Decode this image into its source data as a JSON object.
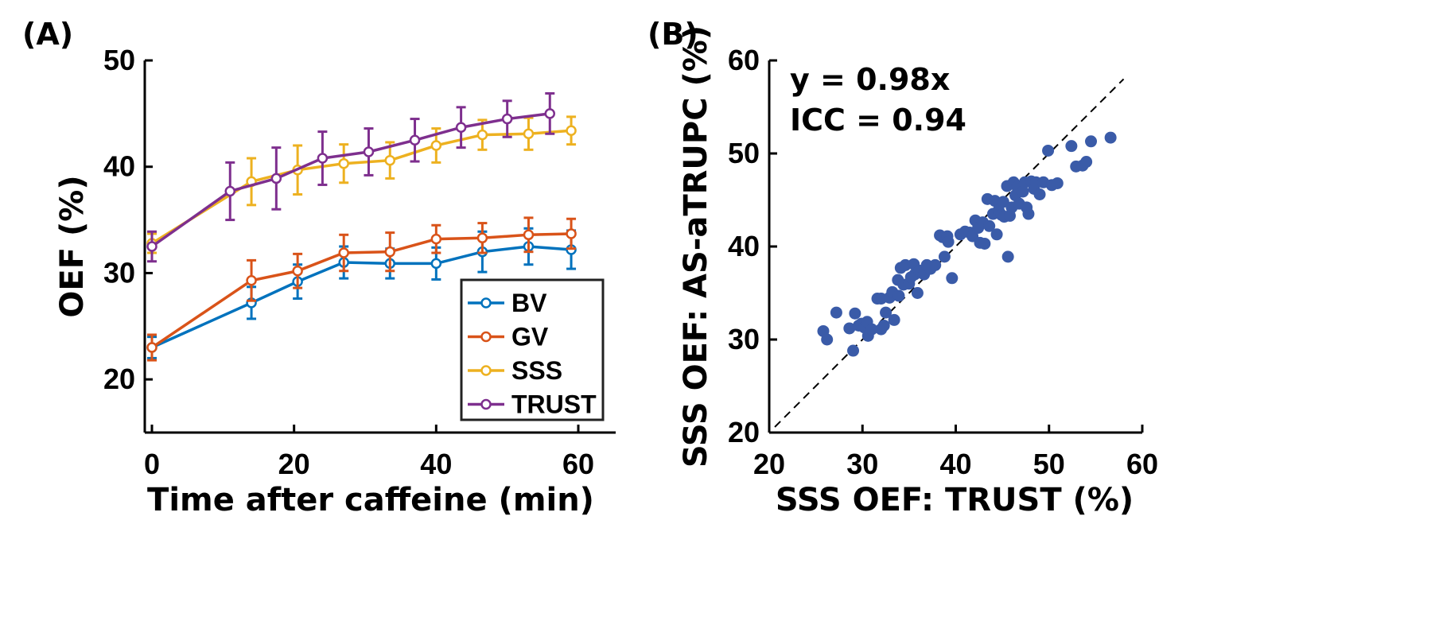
{
  "chart_data": [
    {
      "panel_label": "(A)",
      "type": "line",
      "xlabel": "Time after caffeine (min)",
      "ylabel": "OEF (%)",
      "xlim": [
        0,
        65
      ],
      "ylim": [
        15,
        50
      ],
      "xticks": [
        0,
        20,
        40,
        60
      ],
      "yticks": [
        20,
        30,
        40,
        50
      ],
      "legend_position": "bottom-right",
      "series": [
        {
          "name": "BV",
          "color": "#0072BD",
          "x": [
            0,
            14,
            20.5,
            27,
            33.5,
            40,
            46.5,
            53,
            59
          ],
          "y": [
            23.0,
            27.2,
            29.2,
            31.0,
            30.9,
            30.9,
            32.0,
            32.5,
            32.2
          ],
          "err": [
            1.0,
            1.5,
            1.6,
            1.5,
            1.4,
            1.5,
            1.9,
            1.7,
            1.8
          ]
        },
        {
          "name": "GV",
          "color": "#D95319",
          "x": [
            0,
            14,
            20.5,
            27,
            33.5,
            40,
            46.5,
            53,
            59
          ],
          "y": [
            23.0,
            29.3,
            30.2,
            31.9,
            32.0,
            33.2,
            33.3,
            33.6,
            33.7
          ],
          "err": [
            1.2,
            1.9,
            1.6,
            1.7,
            1.8,
            1.3,
            1.4,
            1.6,
            1.4
          ]
        },
        {
          "name": "SSS",
          "color": "#EDB120",
          "x": [
            0,
            14,
            20.5,
            27,
            33.5,
            40,
            46.5,
            53,
            59
          ],
          "y": [
            32.8,
            38.6,
            39.7,
            40.3,
            40.6,
            42.0,
            43.0,
            43.1,
            43.4
          ],
          "err": [
            0.9,
            2.2,
            2.3,
            1.8,
            1.7,
            1.6,
            1.4,
            1.5,
            1.3
          ]
        },
        {
          "name": "TRUST",
          "color": "#7E2F8E",
          "x": [
            0,
            11,
            17.5,
            24,
            30.5,
            37,
            43.5,
            50,
            56
          ],
          "y": [
            32.5,
            37.7,
            38.9,
            40.8,
            41.4,
            42.5,
            43.7,
            44.5,
            45.0
          ],
          "err": [
            1.4,
            2.7,
            2.9,
            2.5,
            2.2,
            2.0,
            1.9,
            1.7,
            1.9
          ]
        }
      ]
    },
    {
      "panel_label": "(B)",
      "type": "scatter",
      "xlabel": "SSS OEF: TRUST (%)",
      "ylabel": "SSS OEF: AS-aTRUPC (%)",
      "xlim": [
        20,
        60
      ],
      "ylim": [
        20,
        60
      ],
      "xticks": [
        20,
        30,
        40,
        50,
        60
      ],
      "yticks": [
        20,
        30,
        40,
        50,
        60
      ],
      "annotations": [
        "y = 0.98x",
        "ICC = 0.94"
      ],
      "reference_line": {
        "slope": 1.0,
        "intercept": 0,
        "style": "dashed"
      },
      "point_color": "#3A5BA8",
      "points": [
        [
          25.8,
          30.9
        ],
        [
          26.2,
          30.0
        ],
        [
          27.2,
          32.9
        ],
        [
          28.6,
          31.2
        ],
        [
          29.0,
          28.8
        ],
        [
          29.2,
          32.8
        ],
        [
          29.6,
          31.5
        ],
        [
          29.9,
          31.7
        ],
        [
          30.2,
          31.3
        ],
        [
          30.5,
          31.9
        ],
        [
          30.6,
          30.4
        ],
        [
          31.0,
          31.1
        ],
        [
          31.6,
          34.4
        ],
        [
          32.0,
          34.4
        ],
        [
          32.0,
          31.1
        ],
        [
          32.3,
          31.5
        ],
        [
          32.5,
          32.9
        ],
        [
          32.9,
          34.5
        ],
        [
          33.2,
          35.1
        ],
        [
          33.4,
          32.1
        ],
        [
          33.9,
          34.7
        ],
        [
          33.8,
          36.4
        ],
        [
          34.1,
          37.7
        ],
        [
          34.4,
          35.9
        ],
        [
          34.6,
          38.0
        ],
        [
          35.0,
          36.0
        ],
        [
          35.2,
          36.7
        ],
        [
          35.5,
          38.1
        ],
        [
          35.6,
          37.0
        ],
        [
          35.9,
          35.0
        ],
        [
          36.1,
          37.4
        ],
        [
          36.6,
          37.0
        ],
        [
          36.9,
          38.0
        ],
        [
          37.3,
          37.6
        ],
        [
          37.8,
          38.0
        ],
        [
          38.3,
          41.2
        ],
        [
          38.6,
          41.0
        ],
        [
          38.8,
          38.9
        ],
        [
          39.1,
          41.1
        ],
        [
          39.2,
          40.5
        ],
        [
          39.6,
          36.6
        ],
        [
          40.5,
          41.3
        ],
        [
          41.0,
          41.6
        ],
        [
          41.5,
          41.5
        ],
        [
          41.8,
          41.1
        ],
        [
          42.1,
          42.8
        ],
        [
          42.4,
          42.0
        ],
        [
          42.6,
          40.4
        ],
        [
          42.9,
          42.6
        ],
        [
          43.1,
          40.3
        ],
        [
          43.4,
          45.1
        ],
        [
          43.6,
          42.2
        ],
        [
          44.0,
          43.5
        ],
        [
          44.2,
          44.9
        ],
        [
          44.4,
          41.3
        ],
        [
          44.6,
          43.9
        ],
        [
          44.9,
          43.4
        ],
        [
          45.1,
          44.8
        ],
        [
          45.2,
          43.2
        ],
        [
          45.5,
          46.5
        ],
        [
          45.6,
          38.9
        ],
        [
          45.8,
          43.3
        ],
        [
          46.0,
          44.2
        ],
        [
          46.2,
          46.9
        ],
        [
          46.4,
          45.5
        ],
        [
          46.6,
          46.4
        ],
        [
          46.8,
          44.6
        ],
        [
          47.2,
          45.9
        ],
        [
          47.4,
          46.9
        ],
        [
          47.6,
          44.2
        ],
        [
          47.8,
          43.5
        ],
        [
          48.1,
          47.0
        ],
        [
          48.4,
          46.2
        ],
        [
          48.6,
          46.9
        ],
        [
          49.0,
          45.6
        ],
        [
          49.4,
          46.9
        ],
        [
          49.9,
          50.3
        ],
        [
          50.3,
          46.6
        ],
        [
          50.9,
          46.8
        ],
        [
          52.4,
          50.8
        ],
        [
          52.9,
          48.6
        ],
        [
          53.6,
          48.7
        ],
        [
          54.0,
          49.1
        ],
        [
          54.5,
          51.3
        ],
        [
          56.6,
          51.7
        ]
      ]
    }
  ]
}
